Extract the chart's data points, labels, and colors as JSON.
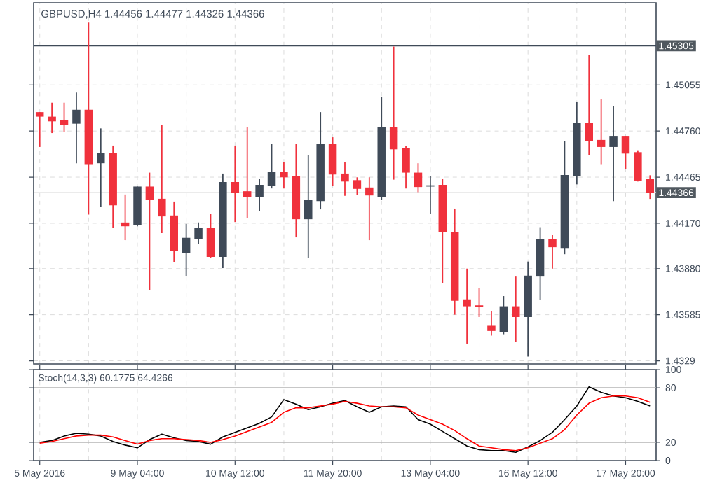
{
  "chart_data": [
    {
      "type": "candlestick",
      "title": "GBPUSD,H4 1.44456 1.44477 1.44326 1.44366",
      "categories": [
        null,
        null,
        null,
        null,
        null,
        null,
        null,
        null,
        null,
        null,
        null,
        null,
        null,
        null,
        null,
        null,
        null,
        null,
        null,
        null,
        null,
        null,
        null,
        null,
        null,
        null,
        null,
        null,
        null,
        null,
        null,
        null,
        null,
        null,
        null,
        null,
        null,
        null,
        null,
        null,
        null,
        null,
        null,
        null,
        null,
        null,
        null,
        null,
        null,
        null,
        null
      ],
      "ohlc": [
        [
          1.44881,
          1.44881,
          1.44658,
          1.44852
        ],
        [
          1.44852,
          1.44941,
          1.44747,
          1.44822
        ],
        [
          1.44828,
          1.44941,
          1.44756,
          1.44798
        ],
        [
          1.44807,
          1.45006,
          1.44554,
          1.44896
        ],
        [
          1.44896,
          1.45453,
          1.44226,
          1.44548
        ],
        [
          1.44554,
          1.44777,
          1.44276,
          1.44622
        ],
        [
          1.44622,
          1.44667,
          1.44142,
          1.44285
        ],
        [
          1.44175,
          1.44354,
          1.44062,
          1.44151
        ],
        [
          1.44157,
          1.44405,
          1.44151,
          1.44405
        ],
        [
          1.44405,
          1.44494,
          1.4374,
          1.44321
        ],
        [
          1.44327,
          1.44801,
          1.44107,
          1.44214
        ],
        [
          1.4422,
          1.44309,
          1.43922,
          1.43993
        ],
        [
          1.43981,
          1.44166,
          1.43832,
          1.44077
        ],
        [
          1.44071,
          1.44175,
          1.44035,
          1.44139
        ],
        [
          1.44139,
          1.44229,
          1.43949,
          1.43955
        ],
        [
          1.43955,
          1.44488,
          1.43883,
          1.44434
        ],
        [
          1.44434,
          1.44667,
          1.44178,
          1.44366
        ],
        [
          1.44375,
          1.44783,
          1.44205,
          1.44339
        ],
        [
          1.44339,
          1.44452,
          1.44247,
          1.44416
        ],
        [
          1.4441,
          1.44676,
          1.44393,
          1.44497
        ],
        [
          1.44497,
          1.4456,
          1.44393,
          1.44464
        ],
        [
          1.4447,
          1.44676,
          1.4408,
          1.44196
        ],
        [
          1.44196,
          1.44607,
          1.43946,
          1.44318
        ],
        [
          1.44312,
          1.44881,
          1.44259,
          1.44676
        ],
        [
          1.44676,
          1.4472,
          1.4441,
          1.44482
        ],
        [
          1.44488,
          1.4456,
          1.44345,
          1.44437
        ],
        [
          1.44446,
          1.44464,
          1.44351,
          1.4439
        ],
        [
          1.44399,
          1.44464,
          1.44062,
          1.44348
        ],
        [
          1.44339,
          1.4498,
          1.44321,
          1.44783
        ],
        [
          1.44783,
          1.453,
          1.44449,
          1.44643
        ],
        [
          1.44649,
          1.44667,
          1.44393,
          1.44494
        ],
        [
          1.44494,
          1.44554,
          1.44369,
          1.44402
        ],
        [
          1.44405,
          1.4447,
          1.44232,
          1.44413
        ],
        [
          1.44416,
          1.44455,
          1.43785,
          1.44115
        ],
        [
          1.44115,
          1.44264,
          1.43585,
          1.43674
        ],
        [
          1.43683,
          1.4388,
          1.434,
          1.43639
        ],
        [
          1.43645,
          1.43755,
          1.4357,
          1.43633
        ],
        [
          1.43514,
          1.43606,
          1.43451,
          1.43481
        ],
        [
          1.43475,
          1.43704,
          1.4346,
          1.43639
        ],
        [
          1.43639,
          1.43829,
          1.43412,
          1.4357
        ],
        [
          1.4357,
          1.43925,
          1.43317,
          1.43835
        ],
        [
          1.43829,
          1.44145,
          1.4368,
          1.44068
        ],
        [
          1.44068,
          1.44095,
          1.4388,
          1.44017
        ],
        [
          1.44008,
          1.44697,
          1.43972,
          1.44479
        ],
        [
          1.44473,
          1.44947,
          1.44419,
          1.4481
        ],
        [
          1.4481,
          1.45248,
          1.44607,
          1.44697
        ],
        [
          1.44703,
          1.44962,
          1.44548,
          1.44658
        ],
        [
          1.44658,
          1.44917,
          1.44312,
          1.44729
        ],
        [
          1.44729,
          1.44729,
          1.44518,
          1.44616
        ],
        [
          1.44625,
          1.44637,
          1.44437,
          1.44443
        ],
        [
          1.44456,
          1.44477,
          1.44326,
          1.44366
        ]
      ],
      "colors": [
        "#f0313c",
        "#f0313c",
        "#f0313c",
        "#3f4a58",
        "#f0313c",
        "#3f4a58",
        "#f0313c",
        "#f0313c",
        "#3f4a58",
        "#f0313c",
        "#f0313c",
        "#f0313c",
        "#3f4a58",
        "#3f4a58",
        "#f0313c",
        "#3f4a58",
        "#f0313c",
        "#f0313c",
        "#3f4a58",
        "#3f4a58",
        "#f0313c",
        "#f0313c",
        "#3f4a58",
        "#3f4a58",
        "#f0313c",
        "#f0313c",
        "#f0313c",
        "#f0313c",
        "#3f4a58",
        "#f0313c",
        "#f0313c",
        "#f0313c",
        "#3f4a58",
        "#f0313c",
        "#f0313c",
        "#f0313c",
        "#f0313c",
        "#f0313c",
        "#3f4a58",
        "#f0313c",
        "#3f4a58",
        "#3f4a58",
        "#f0313c",
        "#3f4a58",
        "#3f4a58",
        "#f0313c",
        "#f0313c",
        "#3f4a58",
        "#f0313c",
        "#f0313c",
        "#f0313c"
      ],
      "ylim": [
        1.4327,
        1.4558
      ],
      "yticks": [
        1.4329,
        1.43585,
        {
          "value": 1.4388,
          "label": "1.43880"
        },
        {
          "value": 1.4417,
          "label": "1.44170"
        },
        1.44465,
        {
          "value": 1.4476,
          "label": "1.44760"
        },
        1.45055
      ],
      "ref_lines": [
        {
          "axis": "y",
          "value": 1.45305,
          "label": "1.45305",
          "color": "#3f4a58"
        },
        {
          "axis": "y",
          "value": 1.44366,
          "label": "1.44366",
          "color": "#e4e4e4"
        }
      ],
      "grid": true,
      "tick_labels": "y"
    },
    {
      "type": "line",
      "title": "Stoch(14,3,3) 60.1775 64.4266",
      "categories": [
        "5 May 2016",
        null,
        null,
        null,
        null,
        null,
        null,
        null,
        "9 May 04:00",
        null,
        null,
        null,
        null,
        null,
        null,
        null,
        "10 May 12:00",
        null,
        null,
        null,
        null,
        null,
        null,
        null,
        "11 May 20:00",
        null,
        null,
        null,
        null,
        null,
        null,
        null,
        "13 May 04:00",
        null,
        null,
        null,
        null,
        null,
        null,
        null,
        "16 May 12:00",
        null,
        null,
        null,
        null,
        null,
        null,
        null,
        "17 May 20:00",
        null,
        null
      ],
      "series": [
        {
          "color": "#000000",
          "values": [
            20,
            22,
            27,
            30,
            29,
            27,
            21,
            17,
            14,
            23,
            29,
            25,
            22,
            21,
            18,
            26,
            31,
            36,
            41,
            48,
            67,
            62,
            56,
            59,
            63,
            66,
            59,
            53,
            59,
            60,
            59,
            45,
            40,
            32,
            24,
            16,
            12,
            11,
            11,
            9,
            15,
            22,
            31,
            45,
            60,
            81,
            75,
            71,
            69,
            65,
            60
          ]
        },
        {
          "color": "#ff0000",
          "values": [
            19,
            21,
            24,
            27,
            28,
            28,
            26,
            22,
            18,
            22,
            24,
            24,
            23,
            22,
            20,
            23,
            27,
            32,
            37,
            42,
            53,
            58,
            58,
            60,
            62,
            65,
            63,
            60,
            59,
            59,
            58,
            50,
            45,
            40,
            33,
            24,
            16,
            14,
            12,
            11,
            14,
            19,
            24,
            34,
            50,
            63,
            69,
            71,
            71,
            69,
            64
          ]
        }
      ],
      "ylim": [
        0,
        100
      ],
      "yticks": [
        0,
        20,
        80,
        100
      ],
      "ref_lines": [
        {
          "axis": "y",
          "value": 20,
          "color": "#b4b4b4"
        },
        {
          "axis": "y",
          "value": 80,
          "color": "#b4b4b4"
        }
      ],
      "grid": "x"
    }
  ]
}
